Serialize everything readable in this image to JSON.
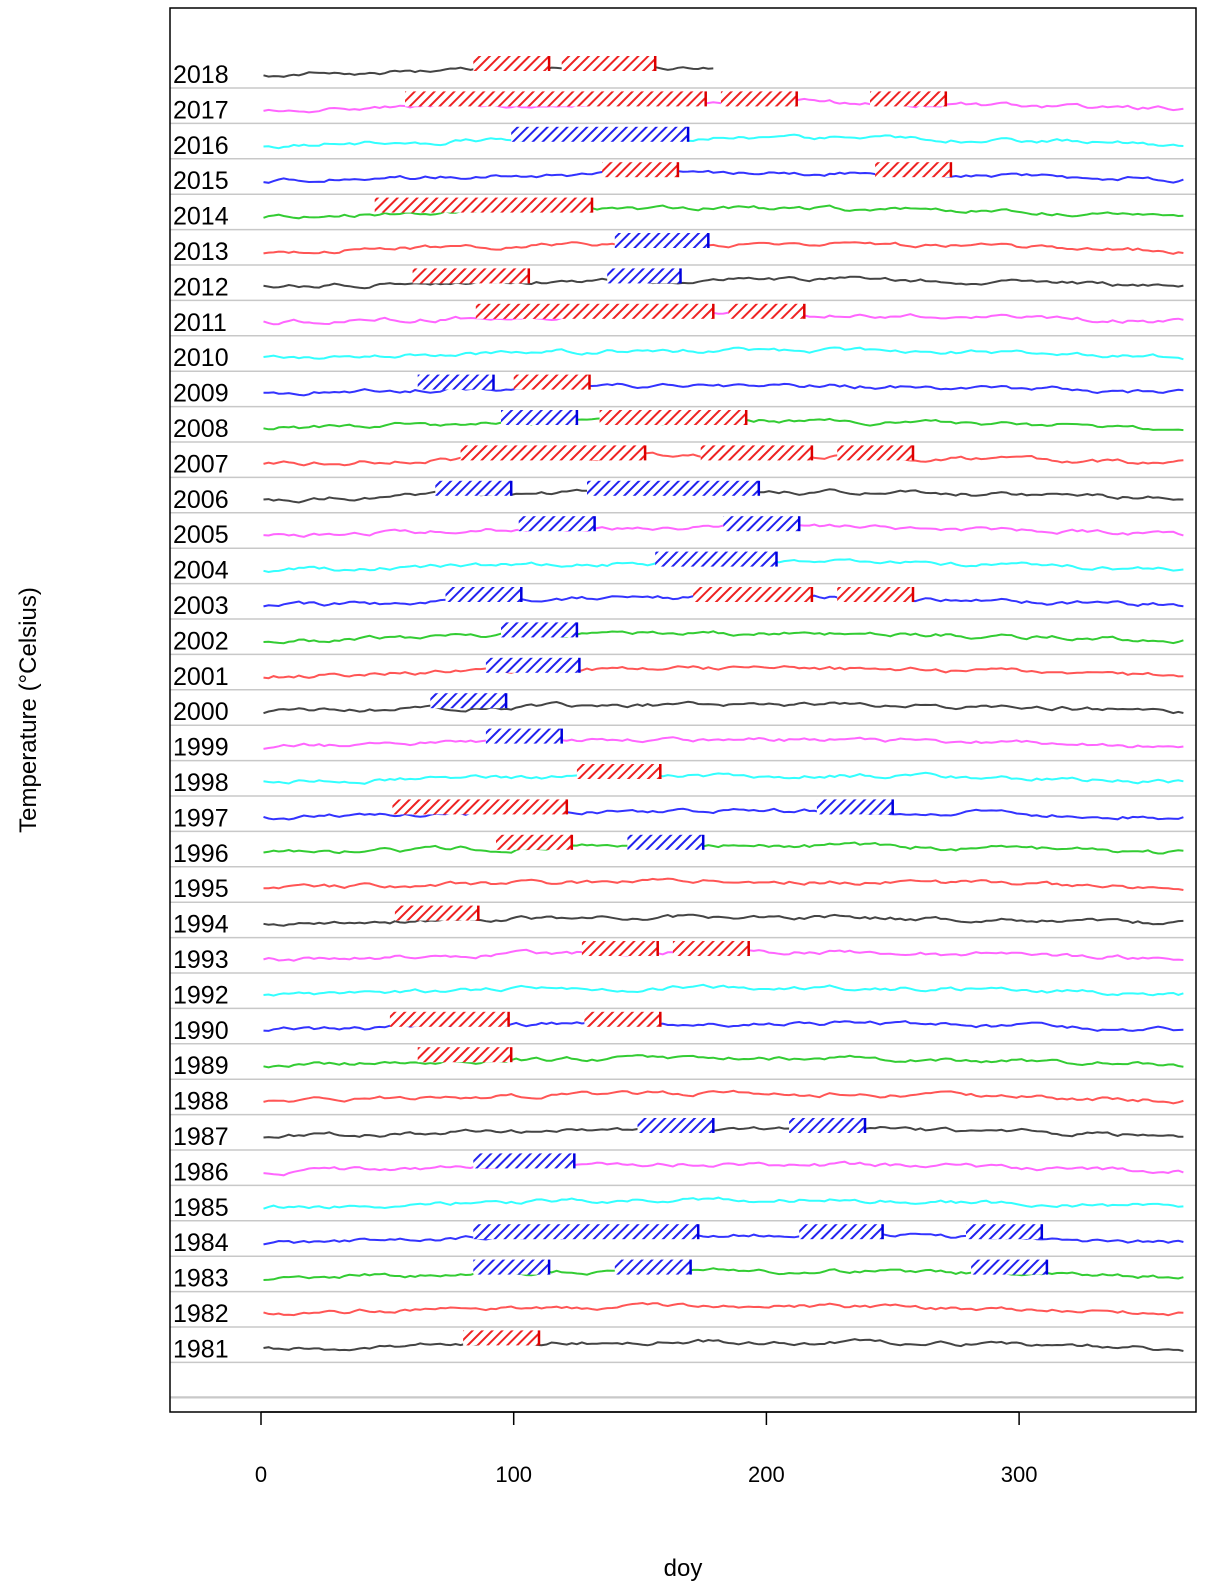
{
  "chart_data": {
    "type": "line",
    "xlabel": "doy",
    "ylabel": "Temperature (°Celsius)",
    "xlim": [
      -36,
      370
    ],
    "x_ticks": [
      "0",
      "100",
      "200",
      "300"
    ],
    "x_tick_values": [
      0,
      100,
      200,
      300
    ],
    "grid": "horizontal separators",
    "palette": [
      "#444444",
      "#ff66ff",
      "#33ffff",
      "#3333ff",
      "#33cc33",
      "#ff5555"
    ],
    "series": [
      {
        "label": "2018",
        "end": 180,
        "events": [
          {
            "start": 84,
            "end": 114,
            "type": "heat"
          },
          {
            "start": 119,
            "end": 156,
            "type": "heat"
          }
        ]
      },
      {
        "label": "2017",
        "events": [
          {
            "start": 57,
            "end": 176,
            "type": "heat"
          },
          {
            "start": 182,
            "end": 212,
            "type": "heat"
          },
          {
            "start": 241,
            "end": 271,
            "type": "heat"
          }
        ]
      },
      {
        "label": "2016",
        "events": [
          {
            "start": 99,
            "end": 169,
            "type": "cold"
          }
        ]
      },
      {
        "label": "2015",
        "events": [
          {
            "start": 135,
            "end": 165,
            "type": "heat"
          },
          {
            "start": 243,
            "end": 273,
            "type": "heat"
          }
        ]
      },
      {
        "label": "2014",
        "events": [
          {
            "start": 45,
            "end": 131,
            "type": "heat"
          }
        ]
      },
      {
        "label": "2013",
        "events": [
          {
            "start": 140,
            "end": 177,
            "type": "cold"
          }
        ]
      },
      {
        "label": "2012",
        "events": [
          {
            "start": 60,
            "end": 106,
            "type": "heat"
          },
          {
            "start": 137,
            "end": 166,
            "type": "cold"
          }
        ]
      },
      {
        "label": "2011",
        "events": [
          {
            "start": 85,
            "end": 179,
            "type": "heat"
          },
          {
            "start": 185,
            "end": 215,
            "type": "heat"
          }
        ]
      },
      {
        "label": "2010",
        "events": []
      },
      {
        "label": "2009",
        "events": [
          {
            "start": 100,
            "end": 130,
            "type": "heat"
          },
          {
            "start": 62,
            "end": 92,
            "type": "cold"
          }
        ]
      },
      {
        "label": "2008",
        "events": [
          {
            "start": 134,
            "end": 192,
            "type": "heat"
          },
          {
            "start": 95,
            "end": 125,
            "type": "cold"
          }
        ]
      },
      {
        "label": "2007",
        "events": [
          {
            "start": 79,
            "end": 152,
            "type": "heat"
          },
          {
            "start": 174,
            "end": 218,
            "type": "heat"
          },
          {
            "start": 228,
            "end": 258,
            "type": "heat"
          }
        ]
      },
      {
        "label": "2006",
        "events": [
          {
            "start": 69,
            "end": 99,
            "type": "cold"
          },
          {
            "start": 129,
            "end": 197,
            "type": "cold"
          }
        ]
      },
      {
        "label": "2005",
        "events": [
          {
            "start": 102,
            "end": 132,
            "type": "cold"
          },
          {
            "start": 183,
            "end": 213,
            "type": "cold"
          }
        ]
      },
      {
        "label": "2004",
        "events": [
          {
            "start": 156,
            "end": 204,
            "type": "cold"
          }
        ]
      },
      {
        "label": "2003",
        "events": [
          {
            "start": 171,
            "end": 218,
            "type": "heat"
          },
          {
            "start": 228,
            "end": 258,
            "type": "heat"
          },
          {
            "start": 73,
            "end": 103,
            "type": "cold"
          }
        ]
      },
      {
        "label": "2002",
        "events": [
          {
            "start": 95,
            "end": 125,
            "type": "cold"
          }
        ]
      },
      {
        "label": "2001",
        "events": [
          {
            "start": 89,
            "end": 126,
            "type": "cold"
          }
        ]
      },
      {
        "label": "2000",
        "events": [
          {
            "start": 67,
            "end": 97,
            "type": "cold"
          }
        ]
      },
      {
        "label": "1999",
        "events": [
          {
            "start": 89,
            "end": 119,
            "type": "cold"
          }
        ]
      },
      {
        "label": "1998",
        "events": [
          {
            "start": 125,
            "end": 158,
            "type": "heat"
          }
        ]
      },
      {
        "label": "1997",
        "events": [
          {
            "start": 52,
            "end": 121,
            "type": "heat"
          },
          {
            "start": 220,
            "end": 250,
            "type": "cold"
          }
        ]
      },
      {
        "label": "1996",
        "events": [
          {
            "start": 93,
            "end": 123,
            "type": "heat"
          },
          {
            "start": 145,
            "end": 175,
            "type": "cold"
          }
        ]
      },
      {
        "label": "1995",
        "events": []
      },
      {
        "label": "1994",
        "events": [
          {
            "start": 53,
            "end": 86,
            "type": "heat"
          }
        ]
      },
      {
        "label": "1993",
        "events": [
          {
            "start": 127,
            "end": 157,
            "type": "heat"
          },
          {
            "start": 163,
            "end": 193,
            "type": "heat"
          }
        ]
      },
      {
        "label": "1992",
        "events": []
      },
      {
        "label": "1990",
        "events": [
          {
            "start": 51,
            "end": 98,
            "type": "heat"
          },
          {
            "start": 128,
            "end": 158,
            "type": "heat"
          }
        ]
      },
      {
        "label": "1989",
        "events": [
          {
            "start": 62,
            "end": 99,
            "type": "heat"
          }
        ]
      },
      {
        "label": "1988",
        "events": []
      },
      {
        "label": "1987",
        "events": [
          {
            "start": 149,
            "end": 179,
            "type": "cold"
          },
          {
            "start": 209,
            "end": 239,
            "type": "cold"
          }
        ]
      },
      {
        "label": "1986",
        "events": [
          {
            "start": 84,
            "end": 124,
            "type": "cold"
          }
        ]
      },
      {
        "label": "1985",
        "events": []
      },
      {
        "label": "1984",
        "events": [
          {
            "start": 84,
            "end": 173,
            "type": "cold"
          },
          {
            "start": 213,
            "end": 246,
            "type": "cold"
          },
          {
            "start": 279,
            "end": 309,
            "type": "cold"
          }
        ]
      },
      {
        "label": "1983",
        "events": [
          {
            "start": 84,
            "end": 114,
            "type": "cold"
          },
          {
            "start": 140,
            "end": 170,
            "type": "cold"
          },
          {
            "start": 281,
            "end": 311,
            "type": "cold"
          }
        ]
      },
      {
        "label": "1982",
        "events": []
      },
      {
        "label": "1981",
        "events": [
          {
            "start": 80,
            "end": 110,
            "type": "heat"
          }
        ]
      }
    ]
  }
}
